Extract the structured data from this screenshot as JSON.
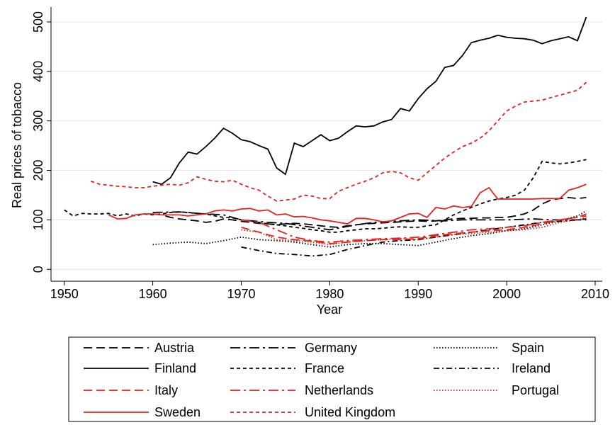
{
  "chart_data": {
    "type": "line",
    "x_label": "Year",
    "y_label": "Real prices of tobacco",
    "xlim": [
      1948.5,
      2010.8
    ],
    "ylim": [
      -24,
      530
    ],
    "xticks": [
      1950,
      1960,
      1970,
      1980,
      1990,
      2000,
      2010
    ],
    "yticks": [
      0,
      100,
      200,
      300,
      400,
      500
    ],
    "grid": true,
    "legend_position": "bottom",
    "series": [
      {
        "name": "Austria",
        "color": "#000000",
        "dash": "long-dash",
        "x": [
          1960,
          1961,
          1962,
          1963,
          1964,
          1965,
          1966,
          1967,
          1968,
          1969,
          1970,
          1971,
          1972,
          1973,
          1974,
          1975,
          1976,
          1977,
          1978,
          1979,
          1980,
          1981,
          1982,
          1983,
          1984,
          1985,
          1986,
          1987,
          1988,
          1989,
          1990,
          1991,
          1992,
          1993,
          1994,
          1995,
          1996,
          1997,
          1998,
          1999,
          2000,
          2001,
          2002,
          2003,
          2004,
          2005,
          2006,
          2007,
          2008,
          2009
        ],
        "values": [
          112,
          110,
          105,
          102,
          100,
          98,
          95,
          97,
          102,
          100,
          97,
          95,
          93,
          92,
          90,
          92,
          93,
          92,
          90,
          88,
          86,
          85,
          88,
          90,
          92,
          93,
          94,
          95,
          96,
          97,
          98,
          97,
          98,
          100,
          102,
          103,
          103,
          104,
          104,
          105,
          105,
          108,
          112,
          120,
          132,
          140,
          143,
          145,
          143,
          145
        ]
      },
      {
        "name": "Germany",
        "color": "#000000",
        "dash": "long-dash-dot",
        "x": [
          1960,
          1963,
          1966,
          1968,
          1970,
          1973,
          1975,
          1978,
          1980,
          1983,
          1985,
          1988,
          1990,
          1993,
          1995,
          1998,
          2000,
          2003,
          2005,
          2007,
          2009
        ],
        "values": [
          115,
          116,
          112,
          110,
          100,
          95,
          93,
          85,
          80,
          90,
          95,
          98,
          100,
          98,
          100,
          100,
          100,
          102,
          100,
          100,
          100
        ]
      },
      {
        "name": "Spain",
        "color": "#000000",
        "dash": "dot",
        "x": [
          1960,
          1962,
          1964,
          1966,
          1968,
          1970,
          1972,
          1974,
          1976,
          1978,
          1980,
          1982,
          1984,
          1986,
          1988,
          1990,
          1992,
          1994,
          1996,
          1998,
          2000,
          2002,
          2004,
          2006,
          2008,
          2009
        ],
        "values": [
          50,
          53,
          55,
          52,
          58,
          65,
          60,
          58,
          55,
          50,
          45,
          50,
          52,
          52,
          50,
          48,
          55,
          62,
          68,
          72,
          78,
          82,
          90,
          98,
          108,
          118
        ]
      },
      {
        "name": "Finland",
        "color": "#000000",
        "dash": "solid",
        "x": [
          1960,
          1961,
          1962,
          1963,
          1964,
          1965,
          1966,
          1967,
          1968,
          1969,
          1970,
          1971,
          1972,
          1973,
          1974,
          1975,
          1976,
          1977,
          1978,
          1979,
          1980,
          1981,
          1982,
          1983,
          1984,
          1985,
          1986,
          1987,
          1988,
          1989,
          1990,
          1991,
          1992,
          1993,
          1994,
          1995,
          1996,
          1997,
          1998,
          1999,
          2000,
          2001,
          2002,
          2003,
          2004,
          2005,
          2006,
          2007,
          2008,
          2009
        ],
        "values": [
          177,
          172,
          185,
          215,
          237,
          233,
          248,
          265,
          285,
          275,
          262,
          258,
          250,
          243,
          205,
          192,
          255,
          248,
          260,
          272,
          260,
          265,
          278,
          290,
          288,
          290,
          298,
          303,
          325,
          320,
          345,
          365,
          380,
          408,
          412,
          432,
          458,
          463,
          467,
          473,
          469,
          467,
          466,
          463,
          456,
          462,
          466,
          470,
          462,
          510
        ]
      },
      {
        "name": "France",
        "color": "#000000",
        "dash": "short-dash",
        "x": [
          1950,
          1951,
          1952,
          1953,
          1954,
          1955,
          1956,
          1957,
          1958,
          1959,
          1960,
          1961,
          1962,
          1963,
          1964,
          1965,
          1966,
          1967,
          1968,
          1969,
          1970,
          1971,
          1972,
          1973,
          1974,
          1975,
          1976,
          1977,
          1978,
          1979,
          1980,
          1981,
          1982,
          1983,
          1984,
          1985,
          1986,
          1987,
          1988,
          1989,
          1990,
          1991,
          1992,
          1993,
          1994,
          1995,
          1996,
          1997,
          1998,
          1999,
          2000,
          2001,
          2002,
          2003,
          2004,
          2005,
          2006,
          2007,
          2008,
          2009
        ],
        "values": [
          120,
          108,
          113,
          112,
          112,
          113,
          108,
          112,
          108,
          112,
          110,
          112,
          115,
          116,
          115,
          113,
          112,
          108,
          105,
          104,
          100,
          98,
          95,
          92,
          90,
          88,
          85,
          83,
          80,
          78,
          75,
          75,
          78,
          80,
          82,
          82,
          83,
          85,
          86,
          85,
          85,
          88,
          90,
          100,
          110,
          118,
          125,
          132,
          138,
          142,
          145,
          150,
          160,
          185,
          218,
          215,
          213,
          215,
          218,
          222
        ]
      },
      {
        "name": "Ireland",
        "color": "#000000",
        "dash": "dash-dot",
        "x": [
          1970,
          1972,
          1974,
          1976,
          1978,
          1980,
          1982,
          1984,
          1986,
          1988,
          1990,
          1992,
          1994,
          1996,
          1998,
          2000,
          2002,
          2004,
          2006,
          2008,
          2009
        ],
        "values": [
          45,
          38,
          32,
          30,
          27,
          30,
          40,
          48,
          55,
          58,
          60,
          65,
          70,
          75,
          80,
          85,
          90,
          95,
          97,
          100,
          102
        ]
      },
      {
        "name": "Italy",
        "color": "#e8221c",
        "dash": "long-dash",
        "x": [
          1970,
          1972,
          1974,
          1976,
          1978,
          1980,
          1982,
          1984,
          1986,
          1988,
          1990,
          1992,
          1994,
          1996,
          1998,
          2000,
          2002,
          2004,
          2006,
          2008,
          2009
        ],
        "values": [
          85,
          75,
          65,
          60,
          57,
          52,
          55,
          58,
          60,
          60,
          62,
          68,
          72,
          75,
          78,
          80,
          85,
          92,
          100,
          105,
          108
        ]
      },
      {
        "name": "Netherlands",
        "color": "#e8221c",
        "dash": "long-dash-dot",
        "x": [
          1970,
          1972,
          1974,
          1976,
          1978,
          1980,
          1982,
          1984,
          1986,
          1988,
          1990,
          1992,
          1994,
          1996,
          1998,
          2000,
          2002,
          2004,
          2006,
          2008,
          2009
        ],
        "values": [
          100,
          95,
          80,
          65,
          58,
          55,
          58,
          60,
          62,
          63,
          65,
          70,
          75,
          80,
          82,
          85,
          88,
          95,
          100,
          105,
          112
        ]
      },
      {
        "name": "Portugal",
        "color": "#e8221c",
        "dash": "dot",
        "x": [
          1970,
          1972,
          1974,
          1976,
          1978,
          1980,
          1982,
          1984,
          1986,
          1988,
          1990,
          1992,
          1994,
          1996,
          1998,
          2000,
          2002,
          2004,
          2006,
          2008,
          2009
        ],
        "values": [
          80,
          75,
          60,
          58,
          55,
          50,
          55,
          58,
          60,
          62,
          60,
          65,
          70,
          72,
          75,
          78,
          80,
          85,
          95,
          100,
          105
        ]
      },
      {
        "name": "Sweden",
        "color": "#e8221c",
        "dash": "solid",
        "x": [
          1955,
          1956,
          1957,
          1958,
          1959,
          1960,
          1961,
          1962,
          1963,
          1964,
          1965,
          1966,
          1967,
          1968,
          1969,
          1970,
          1971,
          1972,
          1973,
          1974,
          1975,
          1976,
          1977,
          1978,
          1979,
          1980,
          1981,
          1982,
          1983,
          1984,
          1985,
          1986,
          1987,
          1988,
          1989,
          1990,
          1991,
          1992,
          1993,
          1994,
          1995,
          1996,
          1997,
          1998,
          1999,
          2000,
          2001,
          2002,
          2003,
          2004,
          2005,
          2006,
          2007,
          2008,
          2009
        ],
        "values": [
          110,
          102,
          103,
          110,
          112,
          112,
          110,
          110,
          110,
          108,
          110,
          112,
          118,
          120,
          118,
          122,
          123,
          118,
          120,
          110,
          112,
          106,
          107,
          104,
          100,
          98,
          95,
          92,
          103,
          103,
          100,
          96,
          98,
          105,
          112,
          113,
          105,
          125,
          122,
          128,
          125,
          127,
          155,
          165,
          142,
          142,
          142,
          142,
          142,
          143,
          143,
          143,
          160,
          165,
          172
        ]
      },
      {
        "name": "United Kingdom",
        "color": "#e8221c",
        "dash": "short-dash",
        "x": [
          1953,
          1954,
          1955,
          1956,
          1957,
          1958,
          1959,
          1960,
          1961,
          1962,
          1963,
          1964,
          1965,
          1966,
          1967,
          1968,
          1969,
          1970,
          1971,
          1972,
          1973,
          1974,
          1975,
          1976,
          1977,
          1978,
          1979,
          1980,
          1981,
          1982,
          1983,
          1984,
          1985,
          1986,
          1987,
          1988,
          1989,
          1990,
          1991,
          1992,
          1993,
          1994,
          1995,
          1996,
          1997,
          1998,
          1999,
          2000,
          2001,
          2002,
          2003,
          2004,
          2005,
          2006,
          2007,
          2008,
          2009
        ],
        "values": [
          178,
          172,
          170,
          168,
          167,
          165,
          165,
          168,
          170,
          172,
          170,
          175,
          187,
          182,
          178,
          177,
          180,
          172,
          165,
          160,
          148,
          138,
          140,
          142,
          150,
          148,
          143,
          143,
          158,
          165,
          172,
          178,
          185,
          195,
          198,
          195,
          185,
          180,
          195,
          210,
          225,
          237,
          248,
          255,
          265,
          280,
          300,
          320,
          330,
          338,
          340,
          342,
          347,
          352,
          357,
          362,
          378
        ]
      }
    ]
  }
}
